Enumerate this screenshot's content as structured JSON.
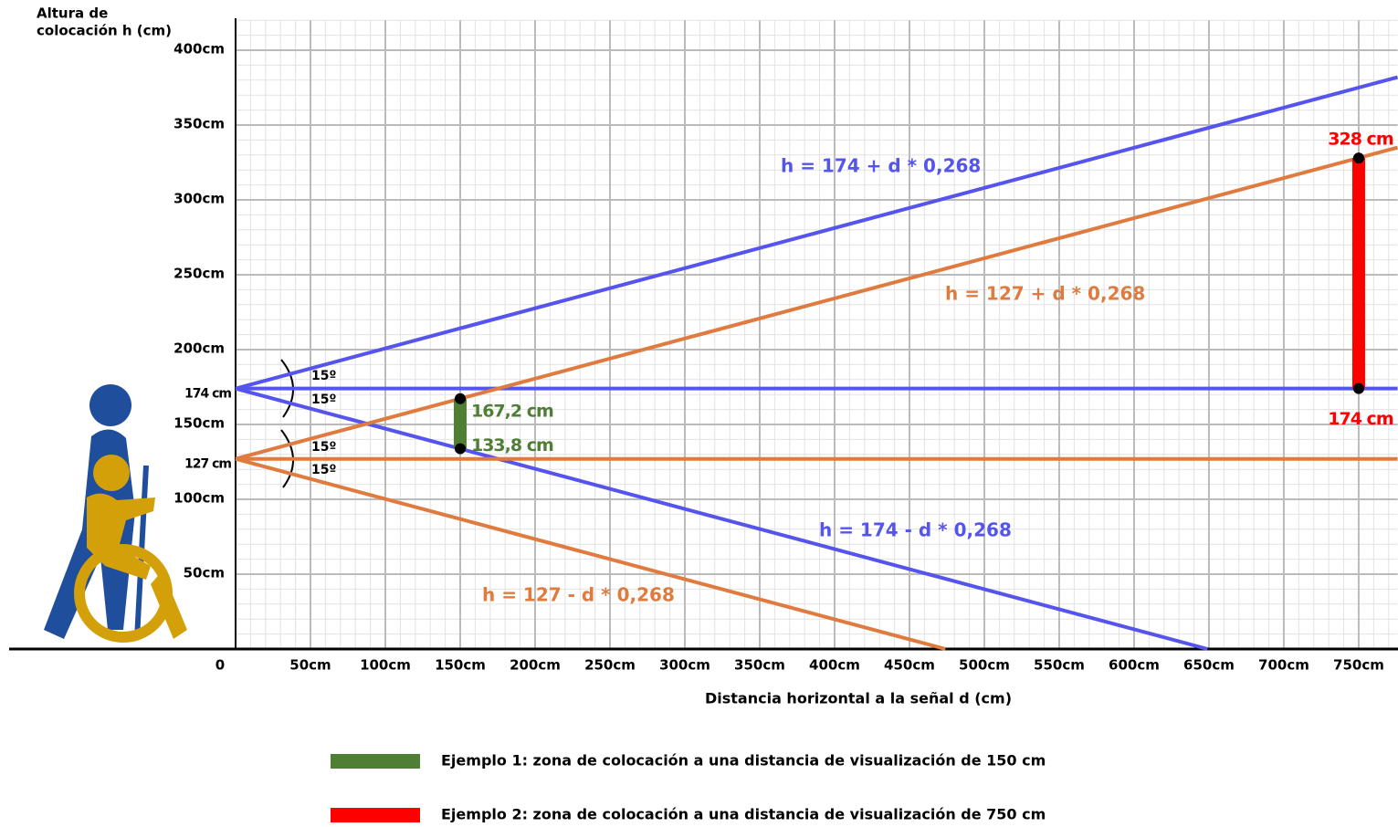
{
  "chart_data": {
    "type": "line",
    "ylabel": [
      "Altura de",
      "colocación h (cm)"
    ],
    "xlabel": "Distancia horizontal a la señal d (cm)",
    "xlim": [
      0,
      776
    ],
    "ylim": [
      0,
      420
    ],
    "grid": true,
    "minor_grid": 10,
    "xticks": [
      0,
      {
        "value": 50,
        "label": "50cm"
      },
      {
        "value": 100,
        "label": "100cm"
      },
      {
        "value": 150,
        "label": "150cm"
      },
      {
        "value": 200,
        "label": "200cm"
      },
      {
        "value": 250,
        "label": "250cm"
      },
      {
        "value": 300,
        "label": "300cm"
      },
      {
        "value": 350,
        "label": "350cm"
      },
      {
        "value": 400,
        "label": "400cm"
      },
      {
        "value": 450,
        "label": "450cm"
      },
      {
        "value": 500,
        "label": "500cm"
      },
      {
        "value": 550,
        "label": "550cm"
      },
      {
        "value": 600,
        "label": "600cm"
      },
      {
        "value": 650,
        "label": "650cm"
      },
      {
        "value": 700,
        "label": "700cm"
      },
      {
        "value": 750,
        "label": "750cm"
      }
    ],
    "yticks": [
      {
        "value": 50,
        "label": "50cm"
      },
      {
        "value": 100,
        "label": "100cm"
      },
      {
        "value": 150,
        "label": "150cm"
      },
      {
        "value": 200,
        "label": "200cm"
      },
      {
        "value": 250,
        "label": "250cm"
      },
      {
        "value": 300,
        "label": "300cm"
      },
      {
        "value": 350,
        "label": "350cm"
      },
      {
        "value": 400,
        "label": "400cm"
      }
    ],
    "y_marks": [
      {
        "value": 174,
        "label": "174 cm"
      },
      {
        "value": 127,
        "label": "127 cm"
      }
    ],
    "series": [
      {
        "name": "h = 174 + d * 0,268",
        "color": "#5555ee",
        "x": [
          0,
          776
        ],
        "values": [
          174,
          382
        ]
      },
      {
        "color": "#5555ee",
        "x": [
          0,
          776
        ],
        "values": [
          174,
          174
        ]
      },
      {
        "name": "h = 174 - d * 0,268",
        "color": "#5555ee",
        "x": [
          0,
          649
        ],
        "values": [
          174,
          0
        ]
      },
      {
        "name": "h = 127 + d * 0,268",
        "color": "#e07b3f",
        "x": [
          0,
          776
        ],
        "values": [
          127,
          335
        ]
      },
      {
        "color": "#e07b3f",
        "x": [
          0,
          776
        ],
        "values": [
          127,
          127
        ]
      },
      {
        "name": "h = 127 - d * 0,268",
        "color": "#e07b3f",
        "x": [
          0,
          474
        ],
        "values": [
          127,
          0
        ]
      }
    ],
    "angle_labels": [
      {
        "value": 15,
        "label": "15º"
      },
      {
        "value": 15,
        "label": "15º"
      },
      {
        "value": 15,
        "label": "15º"
      },
      {
        "value": 15,
        "label": "15º"
      }
    ],
    "examples": [
      {
        "name": "Ejemplo 1: zona de colocación a una distancia de visualización de 150 cm",
        "color": "#4e7f35",
        "x": 150,
        "values": [
          133.8,
          167.2
        ],
        "value_labels": [
          "133,8 cm",
          "167,2 cm"
        ]
      },
      {
        "name": "Ejemplo 2: zona de colocación a una distancia de visualización de 750 cm",
        "color": "#ff0000",
        "x": 750,
        "values": [
          174,
          328
        ],
        "value_labels": [
          "174 cm",
          "328 cm"
        ]
      }
    ]
  }
}
